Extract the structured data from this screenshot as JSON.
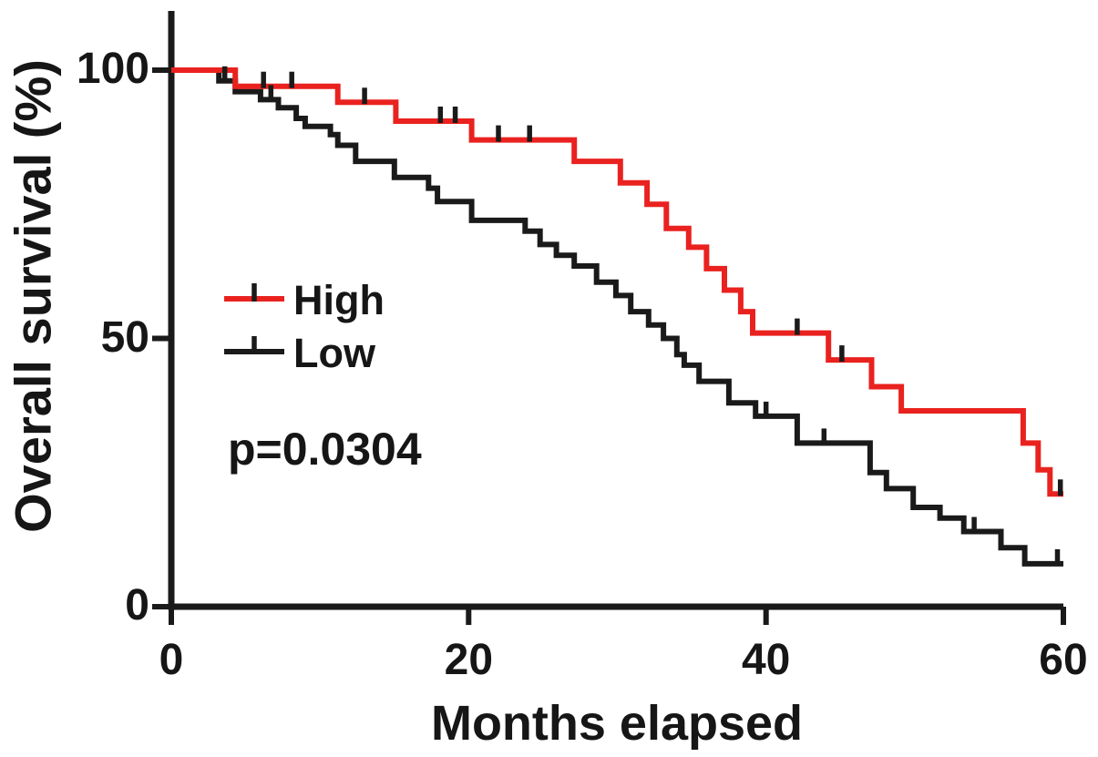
{
  "figure": {
    "background": "#ffffff",
    "text_color": "#161616"
  },
  "chart_data": {
    "type": "line",
    "subtype": "kaplan_meier_step",
    "title": "",
    "xlabel": "Months elapsed",
    "ylabel": "Overall survival (%)",
    "annotation": "p=0.0304",
    "xlim": [
      0,
      60
    ],
    "ylim": [
      0,
      100
    ],
    "x_ticks": [
      0,
      20,
      40,
      60
    ],
    "y_ticks": [
      0,
      50,
      100
    ],
    "grid": false,
    "legend_position": "inside-left-middle",
    "axis_color": "#1a1a1a",
    "censor_mark_color": "#1a1a1a",
    "series": [
      {
        "name": "High",
        "color": "#e9221f",
        "points": [
          [
            0,
            100
          ],
          [
            4.3,
            97
          ],
          [
            11.2,
            94
          ],
          [
            15.1,
            90.5
          ],
          [
            20.2,
            87
          ],
          [
            27.1,
            83
          ],
          [
            30.2,
            79
          ],
          [
            32,
            75
          ],
          [
            33.3,
            70.5
          ],
          [
            34.8,
            67
          ],
          [
            36,
            63
          ],
          [
            37.2,
            59
          ],
          [
            38.3,
            55
          ],
          [
            39.1,
            51
          ],
          [
            44.2,
            46
          ],
          [
            47.1,
            41
          ],
          [
            49.1,
            36.5
          ],
          [
            57.3,
            30.5
          ],
          [
            58.3,
            25.5
          ],
          [
            59.1,
            21
          ],
          [
            60,
            21
          ]
        ],
        "censor_marks": [
          [
            6.2,
            97
          ],
          [
            8.1,
            97
          ],
          [
            13,
            94
          ],
          [
            18.1,
            90.5
          ],
          [
            19.1,
            90.5
          ],
          [
            22,
            87
          ],
          [
            24.1,
            87
          ],
          [
            42.1,
            51
          ],
          [
            45.1,
            46
          ],
          [
            59.8,
            21
          ]
        ]
      },
      {
        "name": "Low",
        "color": "#1a1a1a",
        "points": [
          [
            0,
            100
          ],
          [
            3.2,
            98
          ],
          [
            4.3,
            96
          ],
          [
            6,
            94.5
          ],
          [
            7.2,
            93
          ],
          [
            8.4,
            91
          ],
          [
            9,
            89.5
          ],
          [
            10.7,
            88
          ],
          [
            11.2,
            86
          ],
          [
            12.4,
            83
          ],
          [
            15,
            80
          ],
          [
            17.3,
            78
          ],
          [
            17.9,
            75.5
          ],
          [
            20.2,
            72
          ],
          [
            23.8,
            70
          ],
          [
            24.8,
            67.5
          ],
          [
            25.9,
            65.5
          ],
          [
            27.1,
            63.5
          ],
          [
            28.6,
            60.5
          ],
          [
            29.9,
            58
          ],
          [
            30.9,
            55
          ],
          [
            32.1,
            52.5
          ],
          [
            33.1,
            50
          ],
          [
            34,
            47
          ],
          [
            34.5,
            45
          ],
          [
            35.5,
            42
          ],
          [
            37.5,
            38
          ],
          [
            39.3,
            35.5
          ],
          [
            42.1,
            30.5
          ],
          [
            47,
            25
          ],
          [
            48.1,
            22
          ],
          [
            49.9,
            18.5
          ],
          [
            51.7,
            16.5
          ],
          [
            53.3,
            14
          ],
          [
            55.8,
            11
          ],
          [
            57.4,
            8
          ],
          [
            60,
            8
          ]
        ],
        "censor_marks": [
          [
            3.6,
            98
          ],
          [
            6.7,
            94.5
          ],
          [
            40,
            35.5
          ],
          [
            43.9,
            30.5
          ],
          [
            54,
            14
          ],
          [
            59.6,
            8
          ]
        ]
      }
    ]
  }
}
